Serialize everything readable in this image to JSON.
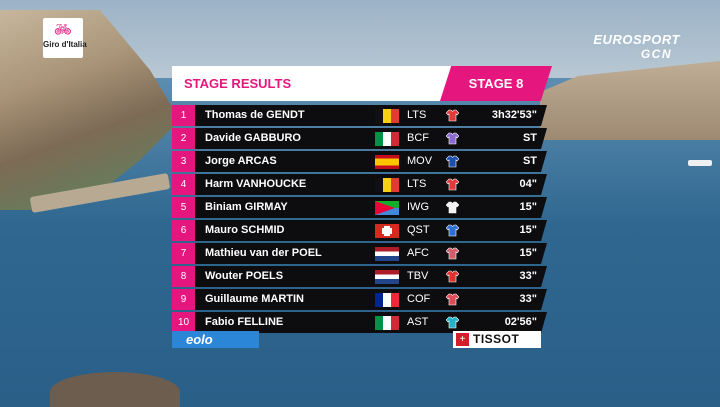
{
  "broadcast": {
    "event_logo_text": "Giro d'Italia",
    "network_line1": "EUROSPORT",
    "network_line2": "GCN"
  },
  "panel": {
    "title": "STAGE RESULTS",
    "stage": "STAGE 8"
  },
  "results": [
    {
      "pos": "1",
      "name": "Thomas de GENDT",
      "nation": "belgium",
      "team": "LTS",
      "time": "3h32'53\""
    },
    {
      "pos": "2",
      "name": "Davide GABBURO",
      "nation": "italy",
      "team": "BCF",
      "time": "ST"
    },
    {
      "pos": "3",
      "name": "Jorge ARCAS",
      "nation": "spain",
      "team": "MOV",
      "time": "ST"
    },
    {
      "pos": "4",
      "name": "Harm VANHOUCKE",
      "nation": "belgium",
      "team": "LTS",
      "time": "04\""
    },
    {
      "pos": "5",
      "name": "Biniam GIRMAY",
      "nation": "eritrea",
      "team": "IWG",
      "time": "15\""
    },
    {
      "pos": "6",
      "name": "Mauro SCHMID",
      "nation": "switzerland",
      "team": "QST",
      "time": "15\""
    },
    {
      "pos": "7",
      "name": "Mathieu van der POEL",
      "nation": "netherlands",
      "team": "AFC",
      "time": "15\""
    },
    {
      "pos": "8",
      "name": "Wouter POELS",
      "nation": "netherlands",
      "team": "TBV",
      "time": "33\""
    },
    {
      "pos": "9",
      "name": "Guillaume MARTIN",
      "nation": "france",
      "team": "COF",
      "time": "33\""
    },
    {
      "pos": "10",
      "name": "Fabio FELLINE",
      "nation": "italy",
      "team": "AST",
      "time": "02'56\""
    }
  ],
  "sponsors": {
    "left": "eolo",
    "right": "TISSOT"
  },
  "colors": {
    "accent": "#e5177e",
    "row_bg": "#0d0d0f",
    "eolo_blue": "#2b86d8",
    "tissot_red": "#d31f2b"
  }
}
